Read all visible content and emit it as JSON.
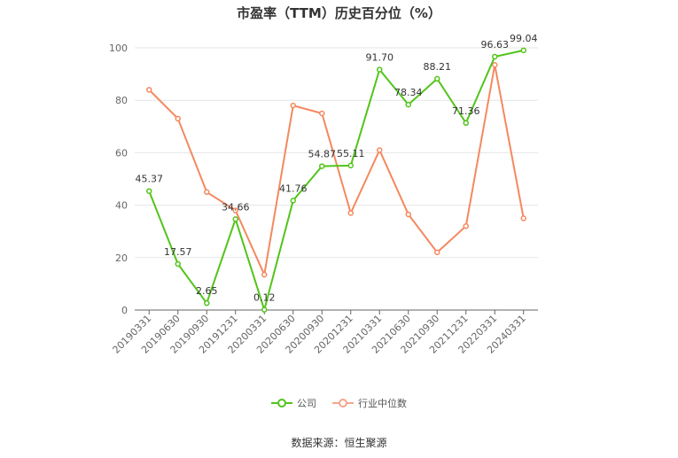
{
  "chart_data": {
    "type": "line",
    "title": "市盈率（TTM）历史百分位（%）",
    "categories": [
      "20190331",
      "20190630",
      "20190930",
      "20191231",
      "20200331",
      "20200630",
      "20200930",
      "20201231",
      "20210331",
      "20210630",
      "20210930",
      "20211231",
      "20220331",
      "20240331"
    ],
    "ylim": [
      0,
      100
    ],
    "yticks": [
      0,
      20,
      40,
      60,
      80,
      100
    ],
    "grid": true,
    "legend_position": "bottom",
    "series": [
      {
        "name": "公司",
        "color": "#52c41a",
        "values": [
          45.37,
          17.57,
          2.65,
          34.66,
          0.12,
          41.76,
          54.87,
          55.11,
          91.7,
          78.34,
          88.21,
          71.36,
          96.63,
          99.04
        ],
        "labels": [
          "45.37",
          "17.57",
          "2.65",
          "34.66",
          "0.12",
          "41.76",
          "54.87",
          "55.11",
          "91.70",
          "78.34",
          "88.21",
          "71.36",
          "96.63",
          "99.04"
        ]
      },
      {
        "name": "行业中位数",
        "color": "#f4895f",
        "values": [
          84,
          73,
          45,
          38,
          13.5,
          78,
          75,
          37,
          61,
          36.5,
          22,
          32,
          93.5,
          35
        ]
      }
    ]
  },
  "source": "数据来源：恒生聚源"
}
